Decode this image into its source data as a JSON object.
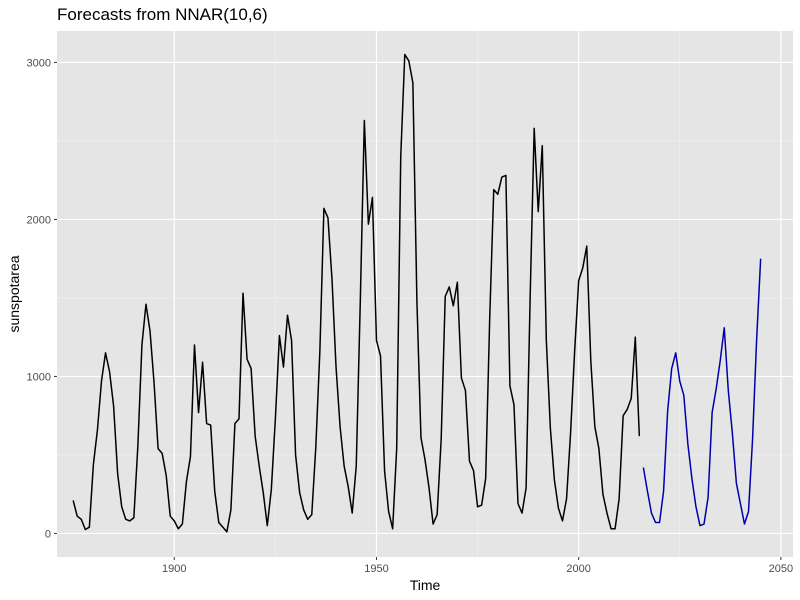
{
  "chart_data": {
    "type": "line",
    "title": "Forecasts from NNAR(10,6)",
    "xlabel": "Time",
    "ylabel": "sunspotarea",
    "xlim": [
      1871,
      2053
    ],
    "ylim": [
      -150,
      3200
    ],
    "x_ticks": [
      1900,
      1950,
      2000,
      2050
    ],
    "y_ticks": [
      0,
      1000,
      2000,
      3000
    ],
    "x_tick_labels": [
      "1900",
      "1950",
      "2000",
      "2050"
    ],
    "y_tick_labels": [
      "0",
      "1000",
      "2000",
      "3000"
    ],
    "grid": true,
    "background": "#e5e5e5",
    "series": [
      {
        "role": "observed",
        "color": "#000000",
        "x": [
          1875,
          1876,
          1877,
          1878,
          1879,
          1880,
          1881,
          1882,
          1883,
          1884,
          1885,
          1886,
          1887,
          1888,
          1889,
          1890,
          1891,
          1892,
          1893,
          1894,
          1895,
          1896,
          1897,
          1898,
          1899,
          1900,
          1901,
          1902,
          1903,
          1904,
          1905,
          1906,
          1907,
          1908,
          1909,
          1910,
          1911,
          1912,
          1913,
          1914,
          1915,
          1916,
          1917,
          1918,
          1919,
          1920,
          1921,
          1922,
          1923,
          1924,
          1925,
          1926,
          1927,
          1928,
          1929,
          1930,
          1931,
          1932,
          1933,
          1934,
          1935,
          1936,
          1937,
          1938,
          1939,
          1940,
          1941,
          1942,
          1943,
          1944,
          1945,
          1946,
          1947,
          1948,
          1949,
          1950,
          1951,
          1952,
          1953,
          1954,
          1955,
          1956,
          1957,
          1958,
          1959,
          1960,
          1961,
          1962,
          1963,
          1964,
          1965,
          1966,
          1967,
          1968,
          1969,
          1970,
          1971,
          1972,
          1973,
          1974,
          1975,
          1976,
          1977,
          1978,
          1979,
          1980,
          1981,
          1982,
          1983,
          1984,
          1985,
          1986,
          1987,
          1988,
          1989,
          1990,
          1991,
          1992,
          1993,
          1994,
          1995,
          1996,
          1997,
          1998,
          1999,
          2000,
          2001,
          2002,
          2003,
          2004,
          2005,
          2006,
          2007,
          2008,
          2009,
          2010,
          2011,
          2012,
          2013,
          2014,
          2015
        ],
        "values": [
          210,
          110,
          90,
          25,
          40,
          440,
          660,
          970,
          1150,
          1030,
          810,
          380,
          170,
          90,
          80,
          100,
          560,
          1200,
          1460,
          1290,
          960,
          540,
          510,
          370,
          110,
          80,
          30,
          60,
          330,
          490,
          1200,
          770,
          1090,
          700,
          690,
          270,
          70,
          40,
          10,
          150,
          700,
          730,
          1530,
          1110,
          1050,
          620,
          430,
          260,
          50,
          280,
          730,
          1260,
          1060,
          1390,
          1230,
          500,
          260,
          150,
          90,
          120,
          550,
          1160,
          2070,
          2010,
          1620,
          1060,
          680,
          430,
          300,
          130,
          430,
          1480,
          2630,
          1970,
          2140,
          1230,
          1130,
          400,
          140,
          30,
          540,
          2400,
          3050,
          3010,
          2870,
          1480,
          610,
          470,
          290,
          60,
          120,
          600,
          1510,
          1570,
          1450,
          1600,
          990,
          910,
          460,
          400,
          170,
          180,
          350,
          1370,
          2190,
          2160,
          2270,
          2280,
          940,
          820,
          190,
          130,
          290,
          1500,
          2580,
          2050,
          2470,
          1230,
          670,
          340,
          160,
          80,
          220,
          640,
          1160,
          1610,
          1690,
          1830,
          1100,
          680,
          540,
          250,
          130,
          30,
          30,
          220,
          750,
          790,
          860,
          1250,
          620
        ]
      },
      {
        "role": "forecast",
        "color": "#0000aa",
        "x": [
          2016,
          2017,
          2018,
          2019,
          2020,
          2021,
          2022,
          2023,
          2024,
          2025,
          2026,
          2027,
          2028,
          2029,
          2030,
          2031,
          2032,
          2033,
          2034,
          2035,
          2036,
          2037,
          2038,
          2039,
          2040,
          2041,
          2042,
          2043,
          2044,
          2045
        ],
        "values": [
          420,
          270,
          130,
          70,
          70,
          270,
          780,
          1050,
          1150,
          970,
          880,
          570,
          350,
          170,
          50,
          60,
          230,
          770,
          920,
          1100,
          1310,
          910,
          640,
          320,
          190,
          60,
          140,
          600,
          1230,
          1750
        ]
      }
    ]
  }
}
